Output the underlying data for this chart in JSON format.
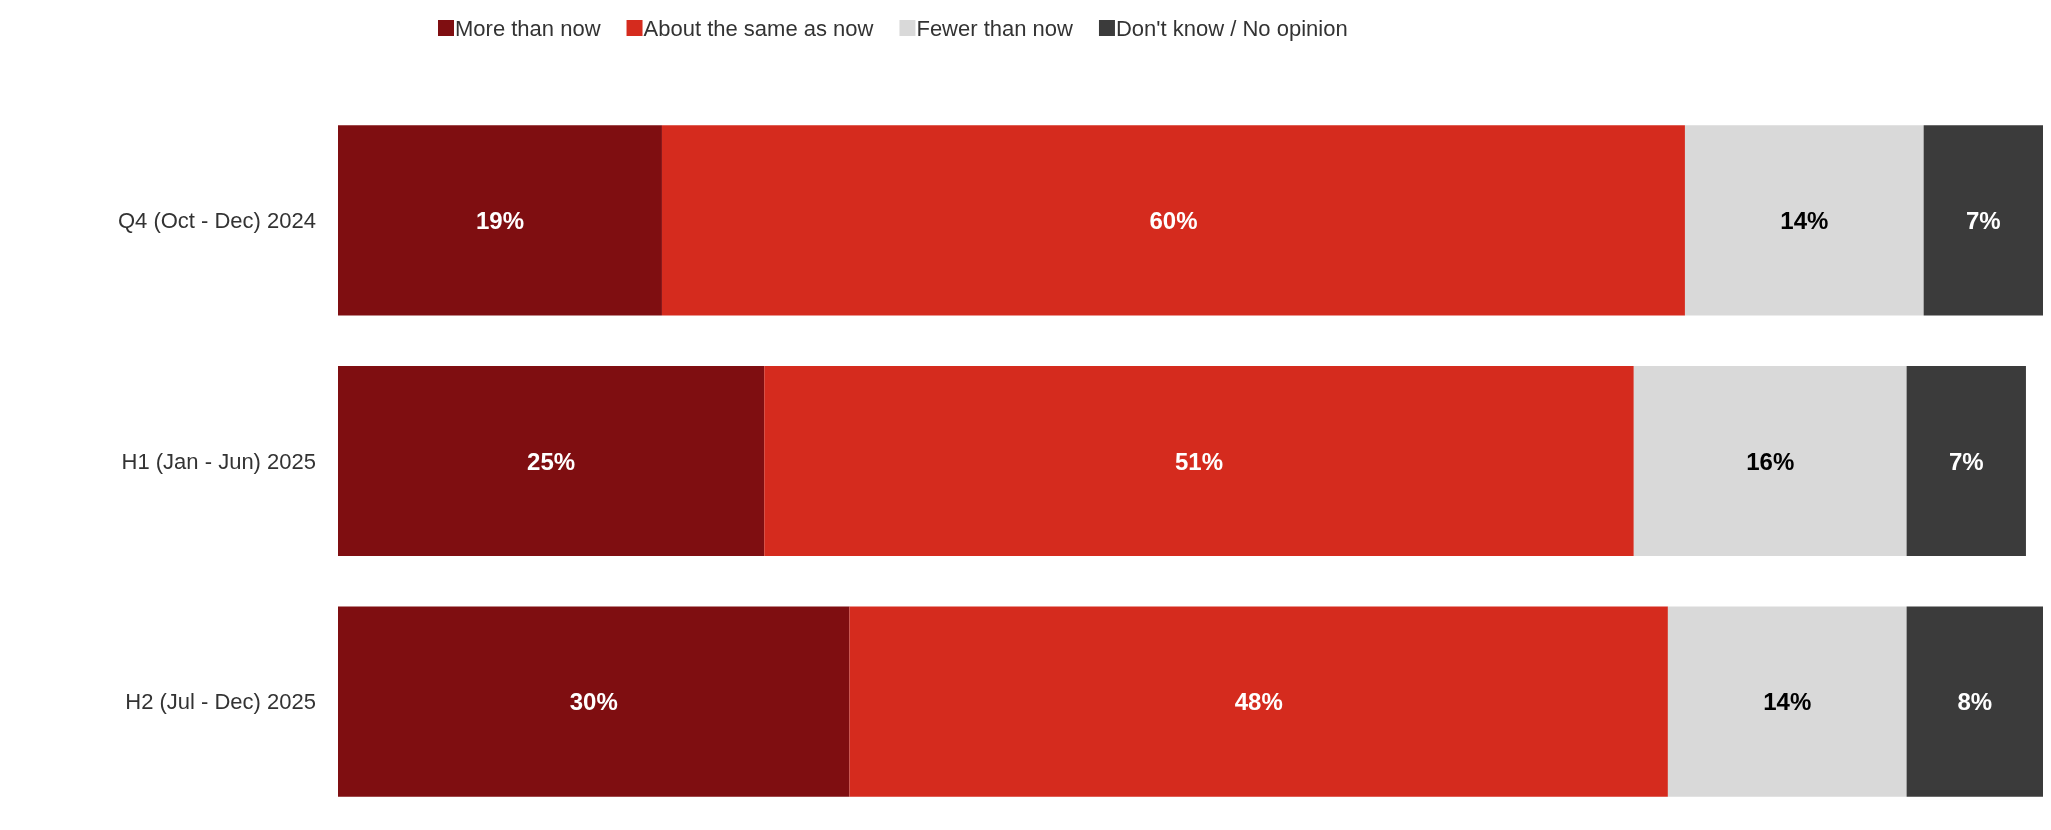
{
  "chart_data": {
    "type": "bar",
    "orientation": "horizontal",
    "stacked": true,
    "categories": [
      "Q4 (Oct - Dec) 2024",
      "H1 (Jan - Jun) 2025",
      "H2 (Jul - Dec) 2025"
    ],
    "xlim": [
      0,
      100
    ],
    "series": [
      {
        "name": "More than now",
        "color": "#7f0e11",
        "values": [
          19,
          25,
          30
        ],
        "value_labels": [
          "19%",
          "25%",
          "30%"
        ]
      },
      {
        "name": "About the same as now",
        "color": "#d52b1e",
        "values": [
          60,
          51,
          48
        ],
        "value_labels": [
          "60%",
          "51%",
          "48%"
        ]
      },
      {
        "name": "Fewer than now",
        "color": "#d9d9d9",
        "values": [
          14,
          16,
          14
        ],
        "value_labels": [
          "14%",
          "16%",
          "14%"
        ]
      },
      {
        "name": "Don't know / No opinion",
        "color": "#3b3b3b",
        "values": [
          7,
          7,
          8
        ],
        "value_labels": [
          "7%",
          "7%",
          "8%"
        ]
      }
    ],
    "legend": "top"
  }
}
